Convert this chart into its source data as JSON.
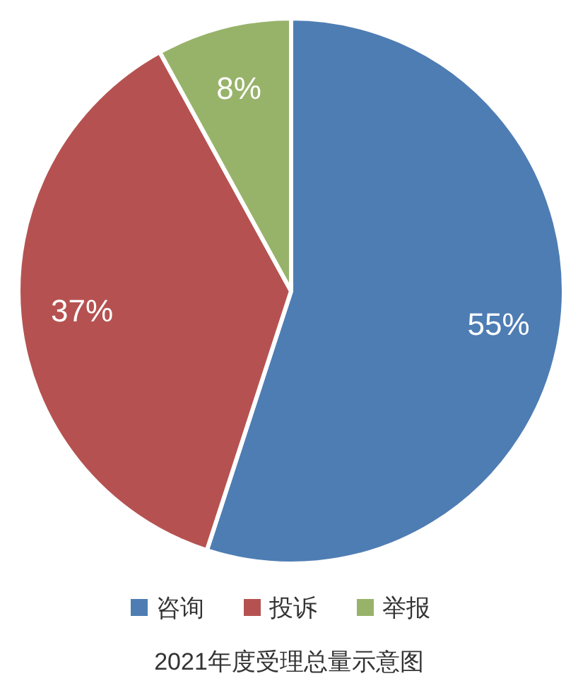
{
  "chart_data": {
    "type": "pie",
    "categories": [
      "咨询",
      "投诉",
      "举报"
    ],
    "values": [
      55,
      37,
      8
    ],
    "colors": [
      "#4e7db3",
      "#b55251",
      "#97b36a"
    ],
    "value_labels": [
      "55%",
      "37%",
      "8%"
    ],
    "legend": "bottom",
    "annotations": [
      "2021年度受理总量示意图"
    ]
  }
}
